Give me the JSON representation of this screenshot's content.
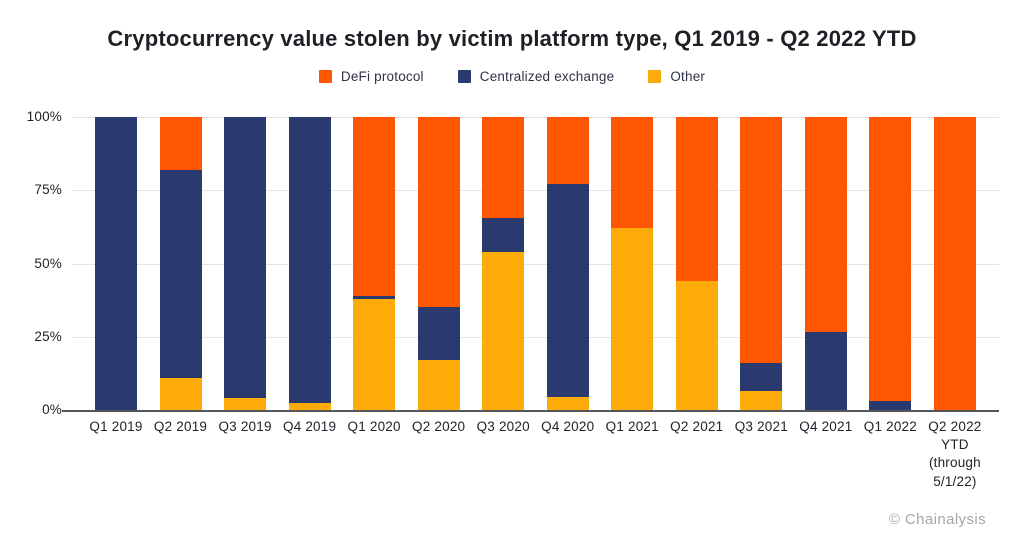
{
  "title": "Cryptocurrency value stolen by victim platform type, Q1 2019 - Q2 2022 YTD",
  "attribution": "© Chainalysis",
  "colors": {
    "defi_protocol": "#FF5602",
    "centralized_exchange": "#2B3A6E",
    "other": "#FCAB08",
    "gridline": "#E3E3E3",
    "axis_baseline": "#55565A",
    "text": "#22232B",
    "muted_text": "#A6A6A6"
  },
  "chart_data": {
    "type": "bar",
    "stacked": true,
    "unit": "percent",
    "title": "Cryptocurrency value stolen by victim platform type, Q1 2019 - Q2 2022 YTD",
    "xlabel": "",
    "ylabel": "",
    "ylim": [
      0,
      100
    ],
    "yticks": [
      "100%",
      "75%",
      "50%",
      "25%",
      "0%"
    ],
    "grid": true,
    "legend_position": "top",
    "categories": [
      "Q1 2019",
      "Q2 2019",
      "Q3 2019",
      "Q4 2019",
      "Q1 2020",
      "Q2 2020",
      "Q3 2020",
      "Q4 2020",
      "Q1 2021",
      "Q2 2021",
      "Q3 2021",
      "Q4 2021",
      "Q1 2022",
      "Q2 2022 YTD (through 5/1/22)"
    ],
    "series": [
      {
        "name": "DeFi protocol",
        "color": "#FF5602",
        "values": [
          0,
          18,
          0,
          0,
          61,
          65,
          34.5,
          23,
          38,
          56,
          84,
          73.5,
          97,
          100
        ]
      },
      {
        "name": "Centralized exchange",
        "color": "#2B3A6E",
        "values": [
          100,
          71,
          96,
          97.5,
          1,
          18,
          11.5,
          72.5,
          0,
          0,
          9.5,
          26.5,
          3,
          0
        ]
      },
      {
        "name": "Other",
        "color": "#FCAB08",
        "values": [
          0,
          11,
          4,
          2.5,
          38,
          17,
          54,
          4.5,
          62,
          44,
          6.5,
          0,
          0,
          0
        ]
      }
    ],
    "stack_order_bottom_to_top": [
      "Other",
      "Centralized exchange",
      "DeFi protocol"
    ]
  }
}
